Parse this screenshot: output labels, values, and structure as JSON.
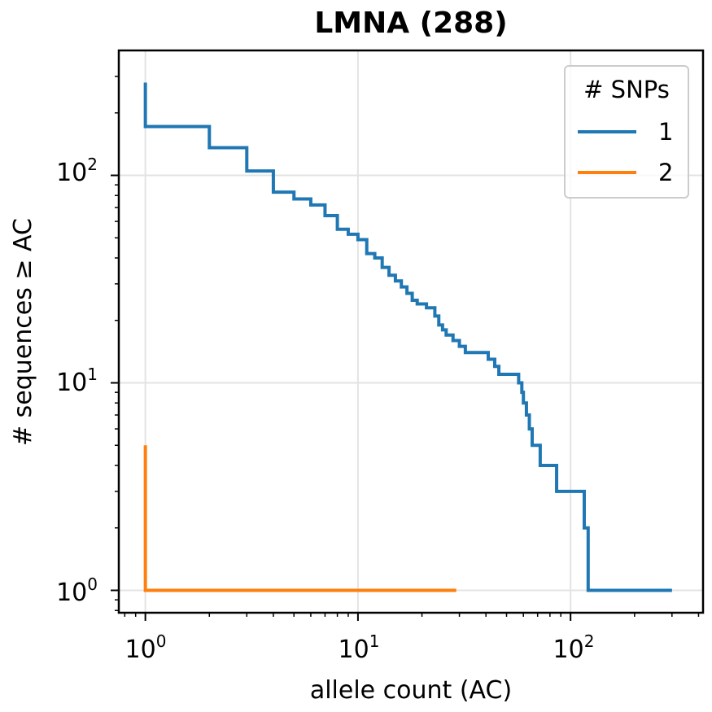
{
  "chart_data": {
    "type": "line",
    "title": "LMNA (288)",
    "xlabel": "allele count (AC)",
    "ylabel": "# sequences ≥ AC",
    "xscale": "log",
    "yscale": "log",
    "xlim": [
      0.75,
      420
    ],
    "ylim": [
      0.78,
      400
    ],
    "x_ticks": [
      {
        "base": "10",
        "exp": "0",
        "value": 1
      },
      {
        "base": "10",
        "exp": "1",
        "value": 10
      },
      {
        "base": "10",
        "exp": "2",
        "value": 100
      }
    ],
    "y_ticks": [
      {
        "base": "10",
        "exp": "0",
        "value": 1
      },
      {
        "base": "10",
        "exp": "1",
        "value": 10
      },
      {
        "base": "10",
        "exp": "2",
        "value": 100
      }
    ],
    "grid": true,
    "legend": {
      "title": "# SNPs",
      "position": "top-right"
    },
    "step_style": "post",
    "series": [
      {
        "name": "1",
        "color": "#1f77b4",
        "points": [
          [
            1,
            280
          ],
          [
            1,
            172
          ],
          [
            2,
            172
          ],
          [
            2,
            136
          ],
          [
            3,
            136
          ],
          [
            3,
            105
          ],
          [
            4,
            105
          ],
          [
            4,
            83
          ],
          [
            5,
            83
          ],
          [
            5,
            77
          ],
          [
            6,
            77
          ],
          [
            6,
            72
          ],
          [
            7,
            72
          ],
          [
            7,
            64
          ],
          [
            8,
            64
          ],
          [
            8,
            55
          ],
          [
            9,
            55
          ],
          [
            9,
            52
          ],
          [
            10,
            52
          ],
          [
            10,
            49
          ],
          [
            11,
            49
          ],
          [
            11,
            42
          ],
          [
            12,
            42
          ],
          [
            12,
            40
          ],
          [
            13,
            40
          ],
          [
            13,
            36
          ],
          [
            14,
            36
          ],
          [
            14,
            33
          ],
          [
            15,
            33
          ],
          [
            15,
            31
          ],
          [
            16,
            31
          ],
          [
            16,
            29
          ],
          [
            17,
            29
          ],
          [
            17,
            27
          ],
          [
            18,
            27
          ],
          [
            18,
            25
          ],
          [
            19,
            25
          ],
          [
            19,
            24
          ],
          [
            21,
            24
          ],
          [
            21,
            23
          ],
          [
            23,
            23
          ],
          [
            23,
            21
          ],
          [
            24,
            21
          ],
          [
            24,
            19
          ],
          [
            25,
            19
          ],
          [
            25,
            18
          ],
          [
            26,
            18
          ],
          [
            26,
            17
          ],
          [
            28,
            17
          ],
          [
            28,
            16
          ],
          [
            30,
            16
          ],
          [
            30,
            15
          ],
          [
            32,
            15
          ],
          [
            32,
            14
          ],
          [
            41,
            14
          ],
          [
            41,
            13
          ],
          [
            44,
            13
          ],
          [
            44,
            12
          ],
          [
            46,
            12
          ],
          [
            46,
            11
          ],
          [
            57,
            11
          ],
          [
            57,
            10
          ],
          [
            59,
            10
          ],
          [
            59,
            9
          ],
          [
            60,
            9
          ],
          [
            60,
            8
          ],
          [
            62,
            8
          ],
          [
            62,
            7
          ],
          [
            64,
            7
          ],
          [
            64,
            6
          ],
          [
            66,
            6
          ],
          [
            66,
            5
          ],
          [
            72,
            5
          ],
          [
            72,
            4
          ],
          [
            86,
            4
          ],
          [
            86,
            3
          ],
          [
            116,
            3
          ],
          [
            116,
            2
          ],
          [
            121,
            2
          ],
          [
            121,
            1
          ],
          [
            300,
            1
          ]
        ]
      },
      {
        "name": "2",
        "color": "#ff7f0e",
        "points": [
          [
            1,
            5
          ],
          [
            1,
            1
          ],
          [
            29,
            1
          ]
        ]
      }
    ]
  }
}
